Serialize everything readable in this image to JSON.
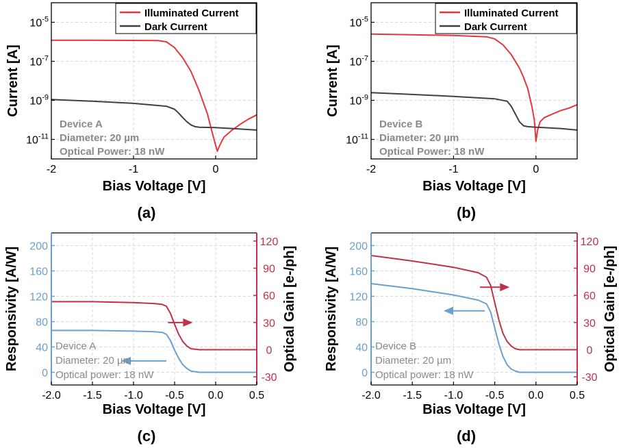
{
  "panels": [
    {
      "id": "a",
      "panel_label": "(a)",
      "kind": "iv",
      "xlabel": "Bias Voltage [V]",
      "ylabel": "Current [A]",
      "xlim": [
        -2,
        0.5
      ],
      "ylim_log10": [
        -12,
        -4
      ],
      "xticks": [
        "-2",
        "-1",
        "0"
      ],
      "yticks": [
        {
          "base": "10",
          "exp": "-5"
        },
        {
          "base": "10",
          "exp": "-7"
        },
        {
          "base": "10",
          "exp": "-9"
        },
        {
          "base": "10",
          "exp": "-11"
        }
      ],
      "legend": [
        "Illuminated Current",
        "Dark Current"
      ],
      "annotation": [
        "Device A",
        "Diameter: 20 µm",
        "Optical Power: 18 nW"
      ]
    },
    {
      "id": "b",
      "panel_label": "(b)",
      "kind": "iv",
      "xlabel": "Bias Voltage [V]",
      "ylabel": "Current [A]",
      "xlim": [
        -2,
        0.5
      ],
      "ylim_log10": [
        -12,
        -4
      ],
      "xticks": [
        "-2",
        "-1",
        "0"
      ],
      "yticks": [
        {
          "base": "10",
          "exp": "-5"
        },
        {
          "base": "10",
          "exp": "-7"
        },
        {
          "base": "10",
          "exp": "-9"
        },
        {
          "base": "10",
          "exp": "-11"
        }
      ],
      "legend": [
        "Illuminated Current",
        "Dark Current"
      ],
      "annotation": [
        "Device B",
        "Diameter: 20 µm",
        "Optical Power: 18 nW"
      ]
    },
    {
      "id": "c",
      "panel_label": "(c)",
      "kind": "resp",
      "xlabel": "Bias Voltage [V]",
      "ylabel_left": "Responsivity [A/W]",
      "ylabel_right": "Optical Gain [e-/ph]",
      "xlim": [
        -2.0,
        0.5
      ],
      "ylim_left": [
        -20,
        220
      ],
      "ylim_right": [
        -39,
        129
      ],
      "xticks": [
        "-2.0",
        "-1.5",
        "-1.0",
        "-0.5",
        "0.0",
        "0.5"
      ],
      "yticks_left": [
        "0",
        "40",
        "80",
        "120",
        "160",
        "200"
      ],
      "yticks_right": [
        "-30",
        "0",
        "30",
        "60",
        "90",
        "120"
      ],
      "annotation": [
        "Device A",
        "Diameter: 20 µm",
        "Optical power: 18 nW"
      ]
    },
    {
      "id": "d",
      "panel_label": "(d)",
      "kind": "resp",
      "xlabel": "Bias Voltage [V]",
      "ylabel_left": "Responsivity [A/W]",
      "ylabel_right": "Optical Gain [e-/ph]",
      "xlim": [
        -2.0,
        0.5
      ],
      "ylim_left": [
        -20,
        220
      ],
      "ylim_right": [
        -39,
        129
      ],
      "xticks": [
        "-2.0",
        "-1.5",
        "-1.0",
        "-0.5",
        "0.0",
        "0.5"
      ],
      "yticks_left": [
        "0",
        "40",
        "80",
        "120",
        "160",
        "200"
      ],
      "yticks_right": [
        "-30",
        "0",
        "30",
        "60",
        "90",
        "120"
      ],
      "annotation": [
        "Device B",
        "Diameter: 20 µm",
        "Optical power: 18 nW"
      ]
    }
  ],
  "colors": {
    "illuminated": "#e8343b",
    "dark": "#404040",
    "resp_axis": "#6a9fd0",
    "gain_axis": "#c03048",
    "resp_curve": "#6a9fd0",
    "gain_curve": "#c03048",
    "annotation": "#8a8a8a",
    "grid": "#d8d8d8"
  },
  "chart_data": [
    {
      "panel": "(a)",
      "type": "line",
      "xlabel": "Bias Voltage [V]",
      "ylabel": "Current [A]",
      "xlim": [
        -2,
        0.5
      ],
      "yscale": "log",
      "ylim": [
        1e-12,
        0.0001
      ],
      "grid": true,
      "legend_position": "top-right",
      "series": [
        {
          "name": "Illuminated Current",
          "x": [
            -2.0,
            -1.5,
            -1.0,
            -0.7,
            -0.6,
            -0.5,
            -0.4,
            -0.3,
            -0.2,
            -0.1,
            -0.05,
            0.0,
            0.02,
            0.05,
            0.1,
            0.2,
            0.3,
            0.4,
            0.5
          ],
          "y": [
            1.2e-06,
            1.2e-06,
            1.18e-06,
            1.15e-06,
            1e-06,
            5e-07,
            1.5e-07,
            3e-08,
            3e-09,
            2e-10,
            3e-11,
            5e-12,
            2.5e-12,
            5e-12,
            1.3e-11,
            3e-11,
            6e-11,
            1.1e-10,
            1.8e-10
          ]
        },
        {
          "name": "Dark Current",
          "x": [
            -2.0,
            -1.5,
            -1.0,
            -0.6,
            -0.5,
            -0.45,
            -0.4,
            -0.35,
            -0.3,
            -0.25,
            -0.2,
            -0.1,
            0.0,
            0.1,
            0.2,
            0.3,
            0.4,
            0.5
          ],
          "y": [
            1.1e-09,
            9e-10,
            7e-10,
            5e-10,
            3.5e-10,
            2.2e-10,
            1.3e-10,
            8e-11,
            5.5e-11,
            4.5e-11,
            4.2e-11,
            4.1e-11,
            4e-11,
            3.8e-11,
            3.6e-11,
            3.4e-11,
            3.2e-11,
            3e-11
          ]
        }
      ]
    },
    {
      "panel": "(b)",
      "type": "line",
      "xlabel": "Bias Voltage [V]",
      "ylabel": "Current [A]",
      "xlim": [
        -2,
        0.5
      ],
      "yscale": "log",
      "ylim": [
        1e-12,
        0.0001
      ],
      "grid": true,
      "legend_position": "top-right",
      "series": [
        {
          "name": "Illuminated Current",
          "x": [
            -2.0,
            -1.5,
            -1.0,
            -0.6,
            -0.5,
            -0.4,
            -0.3,
            -0.2,
            -0.15,
            -0.1,
            -0.05,
            -0.02,
            0.0,
            0.02,
            0.05,
            0.1,
            0.2,
            0.3,
            0.4,
            0.5
          ],
          "y": [
            2.5e-06,
            2.3e-06,
            2.1e-06,
            1.8e-06,
            1.4e-06,
            7e-07,
            2.2e-07,
            4.5e-08,
            1.5e-08,
            4e-09,
            5e-10,
            1e-10,
            8e-12,
            3e-11,
            8e-11,
            1.3e-10,
            2e-10,
            3e-10,
            4e-10,
            6e-10
          ]
        },
        {
          "name": "Dark Current",
          "x": [
            -2.0,
            -1.5,
            -1.0,
            -0.5,
            -0.35,
            -0.3,
            -0.25,
            -0.2,
            -0.15,
            -0.1,
            0.0,
            0.1,
            0.2,
            0.3,
            0.4,
            0.5
          ],
          "y": [
            2.5e-09,
            2e-09,
            1.6e-09,
            1.2e-09,
            9e-10,
            5e-10,
            2e-10,
            8e-11,
            5e-11,
            4.5e-11,
            4.2e-11,
            4e-11,
            3.8e-11,
            3.6e-11,
            3.3e-11,
            3e-11
          ]
        }
      ]
    },
    {
      "panel": "(c)",
      "type": "line",
      "xlabel": "Bias Voltage [V]",
      "ylabel": "Responsivity [A/W]",
      "y2label": "Optical Gain [e-/ph]",
      "xlim": [
        -2.0,
        0.5
      ],
      "ylim": [
        -20,
        220
      ],
      "y2lim": [
        -39,
        129
      ],
      "grid": true,
      "series": [
        {
          "name": "Responsivity",
          "axis": "left",
          "x": [
            -2.0,
            -1.5,
            -1.0,
            -0.75,
            -0.65,
            -0.6,
            -0.55,
            -0.5,
            -0.45,
            -0.4,
            -0.35,
            -0.3,
            -0.25,
            -0.2,
            0.0,
            0.5
          ],
          "y": [
            66,
            66,
            65,
            64,
            63,
            60,
            50,
            35,
            22,
            12,
            6,
            2,
            1,
            0,
            0,
            0
          ]
        },
        {
          "name": "Optical Gain",
          "axis": "right",
          "x": [
            -2.0,
            -1.5,
            -1.0,
            -0.75,
            -0.65,
            -0.6,
            -0.55,
            -0.5,
            -0.45,
            -0.4,
            -0.35,
            -0.3,
            -0.25,
            -0.2,
            0.0,
            0.5
          ],
          "y": [
            53,
            53,
            52,
            51,
            50,
            48,
            40,
            28,
            17,
            9,
            4,
            1,
            0.5,
            0,
            0,
            0
          ]
        }
      ]
    },
    {
      "panel": "(d)",
      "type": "line",
      "xlabel": "Bias Voltage [V]",
      "ylabel": "Responsivity [A/W]",
      "y2label": "Optical Gain [e-/ph]",
      "xlim": [
        -2.0,
        0.5
      ],
      "ylim": [
        -20,
        220
      ],
      "y2lim": [
        -39,
        129
      ],
      "grid": true,
      "series": [
        {
          "name": "Responsivity",
          "axis": "left",
          "x": [
            -2.0,
            -1.5,
            -1.0,
            -0.7,
            -0.6,
            -0.55,
            -0.5,
            -0.45,
            -0.4,
            -0.35,
            -0.3,
            -0.25,
            -0.2,
            0.0,
            0.5
          ],
          "y": [
            140,
            132,
            122,
            114,
            108,
            95,
            70,
            45,
            25,
            12,
            5,
            2,
            0,
            0,
            0
          ]
        },
        {
          "name": "Optical Gain",
          "axis": "right",
          "x": [
            -2.0,
            -1.5,
            -1.0,
            -0.7,
            -0.6,
            -0.55,
            -0.5,
            -0.45,
            -0.4,
            -0.35,
            -0.3,
            -0.25,
            -0.2,
            0.0,
            0.5
          ],
          "y": [
            104,
            98,
            91,
            85,
            80,
            71,
            52,
            33,
            18,
            9,
            4,
            1,
            0,
            0,
            0
          ]
        }
      ]
    }
  ]
}
